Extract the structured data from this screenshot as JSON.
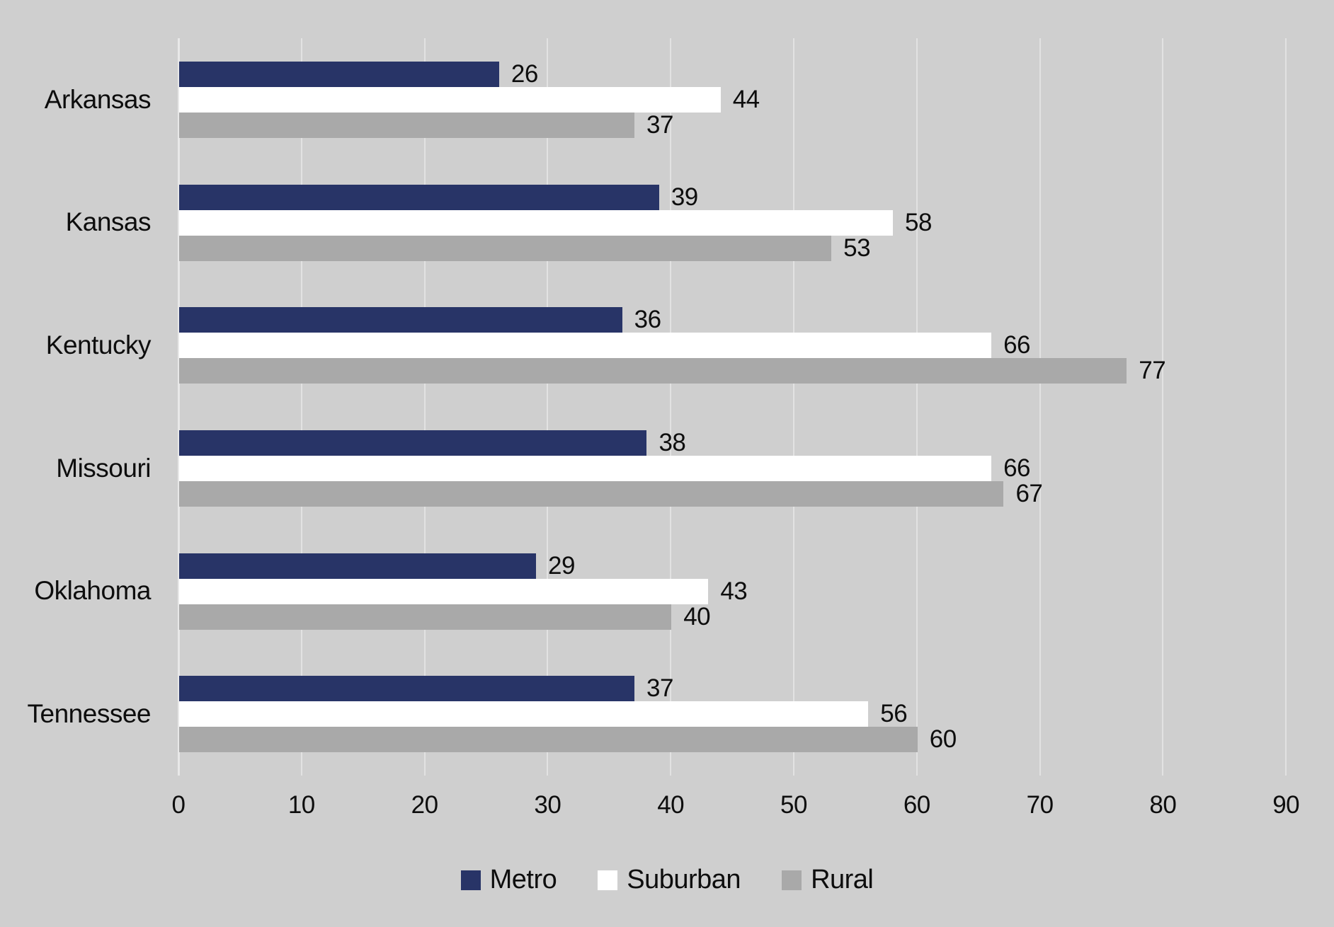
{
  "chart_data": {
    "type": "bar",
    "orientation": "horizontal",
    "title": "",
    "xlabel": "",
    "ylabel": "",
    "categories": [
      "Arkansas",
      "Kansas",
      "Kentucky",
      "Missouri",
      "Oklahoma",
      "Tennessee"
    ],
    "series": [
      {
        "name": "Metro",
        "color": "#283467",
        "values": [
          26,
          39,
          36,
          38,
          29,
          37
        ]
      },
      {
        "name": "Suburban",
        "color": "#ffffff",
        "values": [
          44,
          58,
          66,
          66,
          43,
          56
        ]
      },
      {
        "name": "Rural",
        "color": "#a9a9a9",
        "values": [
          37,
          53,
          77,
          67,
          40,
          60
        ]
      }
    ],
    "xlim": [
      0,
      90
    ],
    "x_ticks": [
      0,
      10,
      20,
      30,
      40,
      50,
      60,
      70,
      80,
      90
    ],
    "grid": "vertical-gridlines-on",
    "data_labels": true,
    "legend_position": "bottom",
    "legend_entries": [
      "Metro",
      "Suburban",
      "Rural"
    ]
  },
  "colors": {
    "background": "#cfcfcf",
    "gridline": "#e2e2e2",
    "zero_axis_line": "#e8e8e8",
    "text": "#0d0d0d"
  }
}
